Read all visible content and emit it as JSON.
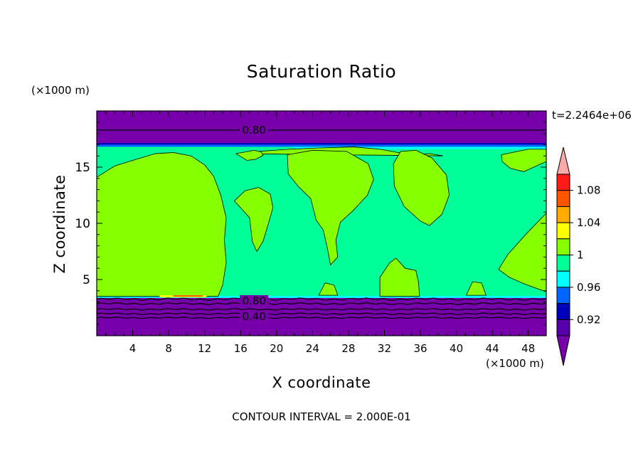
{
  "chart_data": {
    "type": "heatmap",
    "title": "Saturation Ratio",
    "xlabel": "X coordinate",
    "ylabel": "Z coordinate",
    "x_unit": "(×1000 m)",
    "y_unit": "(×1000 m)",
    "time_label": "t=2.2464e+06",
    "footer": "CONTOUR INTERVAL = 2.000E-01",
    "xlim": [
      0,
      50
    ],
    "ylim": [
      0,
      20
    ],
    "x_ticks": [
      4,
      8,
      12,
      16,
      20,
      24,
      28,
      32,
      36,
      40,
      44,
      48
    ],
    "y_ticks": [
      5,
      10,
      15
    ],
    "contour_labels": [
      {
        "text": "0.80",
        "x": 17.5,
        "z": 18.3
      },
      {
        "text": "0.80",
        "x": 17.5,
        "z": 3.1
      },
      {
        "text": "0.40",
        "x": 17.5,
        "z": 1.7
      }
    ],
    "colorbar": {
      "levels": [
        "0.92",
        "0.96",
        "1",
        "1.04",
        "1.08"
      ],
      "colors": [
        "#5500aa",
        "#0000bb",
        "#0066ff",
        "#00ffff",
        "#00ff99",
        "#88ff00",
        "#ffff00",
        "#ffaa00",
        "#ff5500",
        "#ff1a1a",
        "#ffaaaa"
      ],
      "under_color": "#7700aa",
      "over_color": "#ffaaaa"
    },
    "regions": [
      {
        "value": "<0.92",
        "color": "#7700aa",
        "z_range": [
          0,
          3.4
        ]
      },
      {
        "value": "<0.92",
        "color": "#7700aa",
        "z_range": [
          17.1,
          19.8
        ]
      },
      {
        "value": "1.00-1.02",
        "color": "#00ff99",
        "z_range": [
          3.4,
          17.1
        ]
      },
      {
        "value": "1.02-1.04",
        "color": "#88ff00",
        "description": "saturated patches"
      }
    ]
  }
}
